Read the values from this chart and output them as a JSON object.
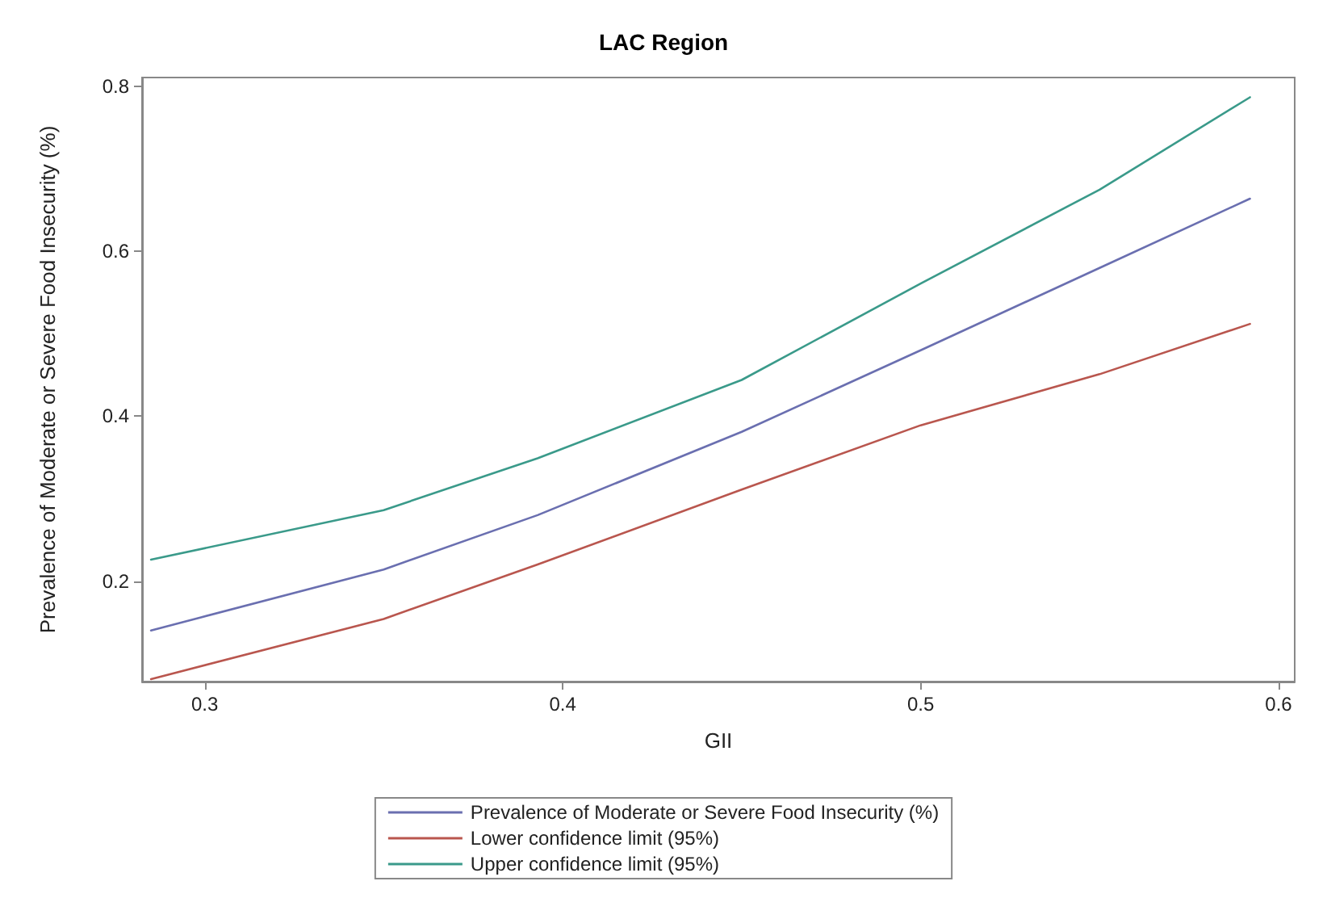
{
  "chart_data": {
    "type": "line",
    "title": "LAC Region",
    "xlabel": "GII",
    "ylabel": "Prevalence of Moderate or Severe Food Insecurity (%)",
    "x": [
      0.285,
      0.35,
      0.393,
      0.45,
      0.5,
      0.55,
      0.592
    ],
    "series": [
      {
        "name": "Prevalence of Moderate or Severe Food Insecurity (%)",
        "color": "#6a6fb0",
        "values": [
          0.14,
          0.214,
          0.28,
          0.381,
          0.48,
          0.58,
          0.664
        ]
      },
      {
        "name": "Lower confidence limit (95%)",
        "color": "#b9564e",
        "values": [
          0.081,
          0.154,
          0.22,
          0.311,
          0.389,
          0.451,
          0.512
        ]
      },
      {
        "name": "Upper confidence limit (95%)",
        "color": "#3a9a8a",
        "values": [
          0.226,
          0.286,
          0.349,
          0.444,
          0.561,
          0.675,
          0.787
        ]
      }
    ],
    "xlim": [
      0.2825,
      0.6045
    ],
    "xticks": [
      0.3,
      0.4,
      0.5,
      0.6
    ],
    "ylim": [
      0.078,
      0.811
    ],
    "yticks": [
      0.2,
      0.4,
      0.6,
      0.8
    ],
    "grid": false,
    "legend": "bottom",
    "marker": "none",
    "line_style": "solid"
  }
}
